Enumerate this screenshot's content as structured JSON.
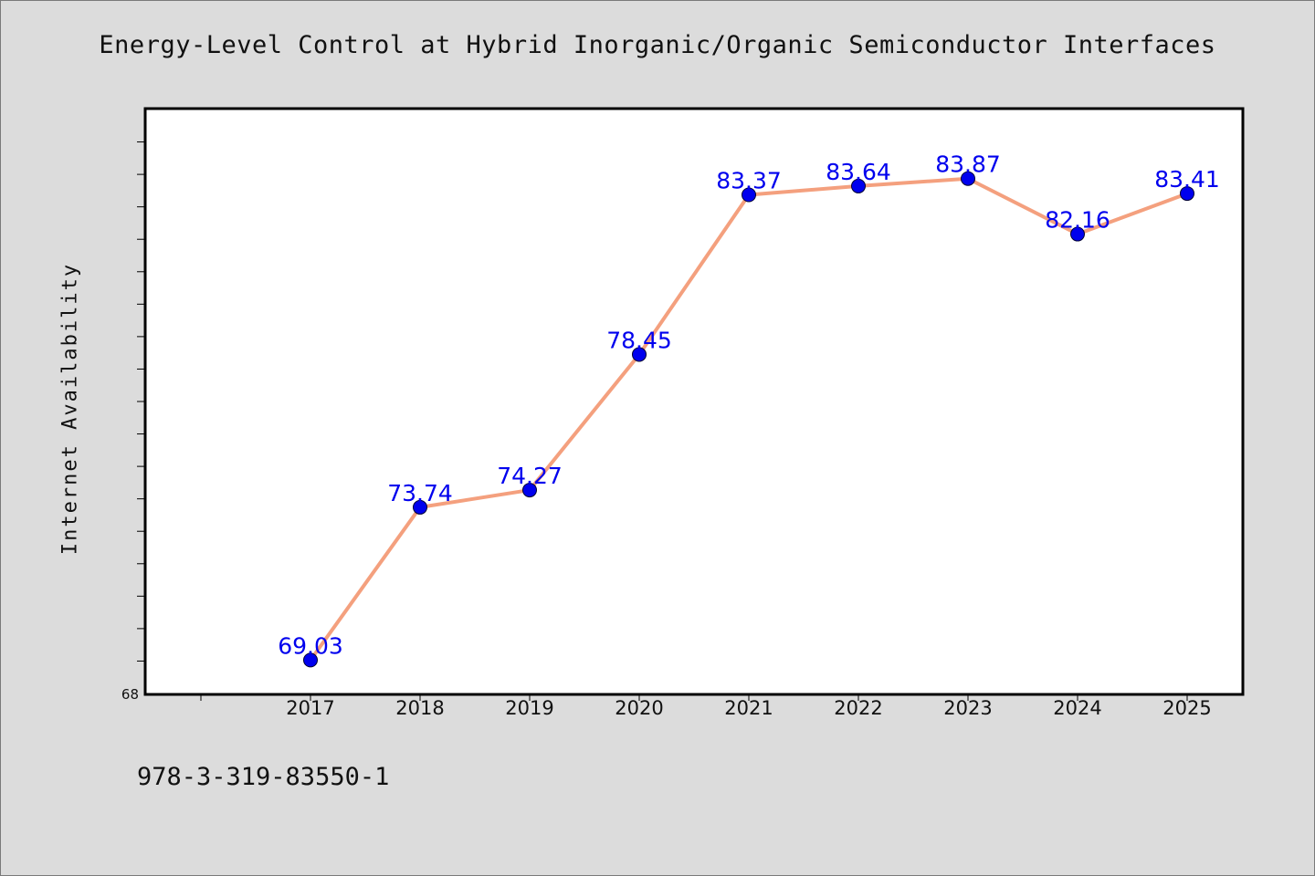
{
  "chart_data": {
    "type": "line",
    "title": "Energy-Level Control at Hybrid Inorganic/Organic Semiconductor Interfaces",
    "xlabel": "",
    "ylabel": "Internet Availability",
    "categories": [
      "2017",
      "2018",
      "2019",
      "2020",
      "2021",
      "2022",
      "2023",
      "2024",
      "2025"
    ],
    "series": [
      {
        "values": [
          69.03,
          73.74,
          74.27,
          78.45,
          83.37,
          83.64,
          83.87,
          82.16,
          83.41
        ],
        "labels": [
          "69.03",
          "73.74",
          "74.27",
          "78.45",
          "83.37",
          "83.64",
          "83.87",
          "82.16",
          "83.41"
        ]
      }
    ],
    "y_tick_labels": [
      "68"
    ],
    "ylim": [
      68,
      86
    ],
    "y_minor_tick_step": 1,
    "grid": false,
    "line_color": "#f4a07e",
    "marker_color": "#0000ee",
    "label_color": "#0000ee"
  },
  "footer": "978-3-319-83550-1"
}
